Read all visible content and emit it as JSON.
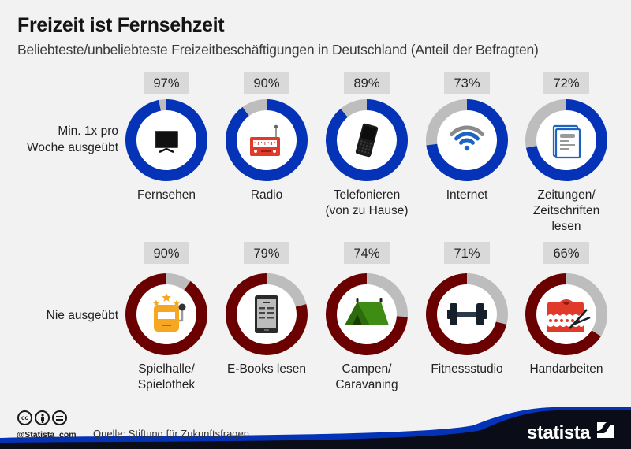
{
  "header": {
    "title": "Freizeit ist Fernsehzeit",
    "subtitle": "Beliebteste/unbeliebteste Freizeitbeschäftigungen in Deutschland (Anteil der Befragten)"
  },
  "rows": [
    {
      "label": "Min. 1x pro\nWoche ausgeübt"
    },
    {
      "label": "Nie ausgeübt"
    }
  ],
  "colors": {
    "background": "#f2f2f2",
    "weekly": "#0533b8",
    "never": "#6b0000",
    "remainder": "#bdbdbd",
    "label_box": "#d9d9d9",
    "footer_dark": "#0a0c18",
    "footer_accent": "#0533b8"
  },
  "chart_data": [
    {
      "type": "pie",
      "subtype": "donut-grid",
      "title": "Min. 1x pro Woche ausgeübt",
      "unit": "%",
      "categories": [
        "Fernsehen",
        "Radio",
        "Telefonieren\n(von zu Hause)",
        "Internet",
        "Zeitungen/\nZeitschriften\nlesen"
      ],
      "icons": [
        "tv-icon",
        "radio-icon",
        "mobile-phone-icon",
        "wifi-icon",
        "newspaper-icon"
      ],
      "values": [
        97,
        90,
        89,
        73,
        72
      ],
      "labels": [
        "97%",
        "90%",
        "89%",
        "73%",
        "72%"
      ],
      "max": 100
    },
    {
      "type": "pie",
      "subtype": "donut-grid",
      "title": "Nie ausgeübt",
      "unit": "%",
      "categories": [
        "Spielhalle/\nSpielothek",
        "E-Books lesen",
        "Campen/\nCaravaning",
        "Fitnessstudio",
        "Handarbeiten"
      ],
      "icons": [
        "slot-machine-icon",
        "ebook-reader-icon",
        "tent-icon",
        "dumbbell-icon",
        "knitting-icon"
      ],
      "values": [
        90,
        79,
        74,
        71,
        66
      ],
      "labels": [
        "90%",
        "79%",
        "74%",
        "71%",
        "66%"
      ],
      "max": 100
    }
  ],
  "footer": {
    "license_icons": [
      "cc-icon",
      "by-icon",
      "nd-icon"
    ],
    "cc_text": "cc",
    "handle": "@Statista_com",
    "source": "Quelle: Stiftung für Zukunftsfragen",
    "brand": "statista"
  }
}
